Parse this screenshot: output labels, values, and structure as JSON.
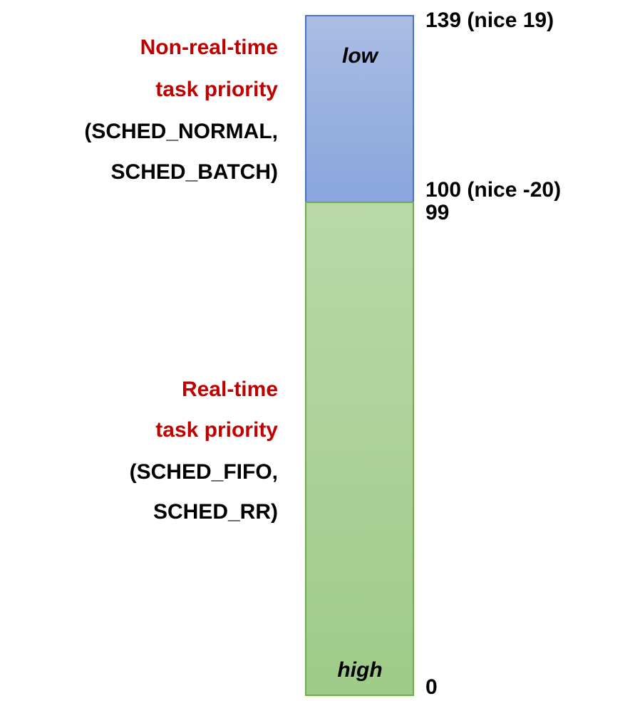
{
  "bar": {
    "top_label": "low",
    "bottom_label": "high"
  },
  "regions": [
    {
      "title": [
        "Non-real-time",
        "task priority"
      ],
      "policies": [
        "(SCHED_NORMAL,",
        "SCHED_BATCH)"
      ]
    },
    {
      "title": [
        "Real-time",
        "task priority"
      ],
      "policies": [
        "(SCHED_FIFO,",
        "SCHED_RR)"
      ]
    }
  ],
  "scale_labels": [
    "139 (nice 19)",
    "100 (nice -20)",
    "99",
    "0"
  ]
}
